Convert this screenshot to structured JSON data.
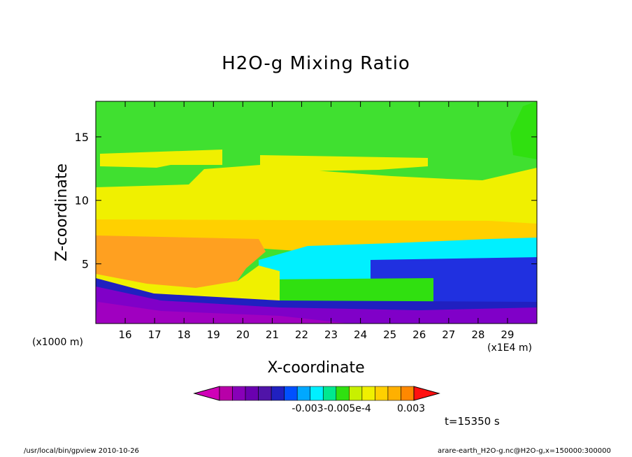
{
  "title": "H2O-g Mixing Ratio",
  "footer": {
    "left": "/usr/local/bin/gpview  2010-10-26",
    "right": "arare-earth_H2O-g.nc@H2O-g,x=150000:300000"
  },
  "time_label": "t=15350 s",
  "chart_data": {
    "type": "heatmap",
    "title": "H2O-g Mixing Ratio",
    "xlabel": "X-coordinate",
    "ylabel": "Z-coordinate",
    "x_unit_left": "(x1000 m)",
    "x_unit_right": "(x1E4 m)",
    "xlim": [
      15.0,
      30.0
    ],
    "ylim": [
      0.3,
      17.8
    ],
    "x_ticks": [
      16,
      17,
      18,
      19,
      20,
      21,
      22,
      23,
      24,
      25,
      26,
      27,
      28,
      29
    ],
    "y_ticks": [
      5,
      10,
      15
    ],
    "colorbar": {
      "colors": [
        "#d000b8",
        "#b800a8",
        "#8800b8",
        "#6a00b0",
        "#5014a8",
        "#2020c0",
        "#0050ff",
        "#00a8ff",
        "#00f0ff",
        "#00e890",
        "#30e010",
        "#c8f000",
        "#f0f000",
        "#ffd000",
        "#ffb000",
        "#ff8800",
        "#ff1010"
      ],
      "tick_labels": [
        "-0.003",
        "-0.005e-4",
        "0.003"
      ]
    },
    "bands": [
      {
        "name": "green-top",
        "color": "#40e030",
        "z": [
          11.2,
          17.8
        ]
      },
      {
        "name": "yellow-upper",
        "color": "#f0f000",
        "z": [
          8.5,
          11.4
        ]
      },
      {
        "name": "yellow-lower",
        "color": "#ffd000",
        "z": [
          7.2,
          8.6
        ]
      },
      {
        "name": "orange",
        "color": "#ffa020",
        "z": [
          3.0,
          7.2
        ]
      },
      {
        "name": "blue",
        "color": "#2030e0",
        "z": [
          1.0,
          5.5
        ]
      },
      {
        "name": "purple",
        "color": "#8000c8",
        "z": [
          0.3,
          2.0
        ]
      }
    ]
  }
}
